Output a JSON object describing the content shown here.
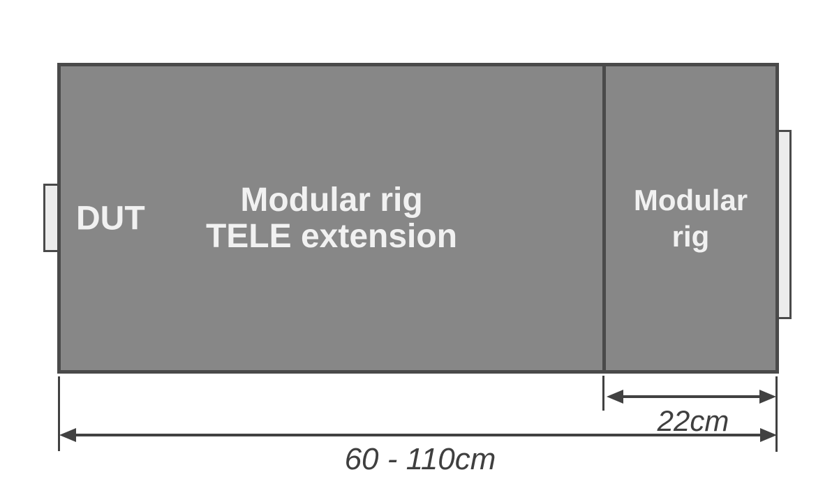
{
  "labels": {
    "dut": "DUT",
    "tele_line1": "Modular rig",
    "tele_line2": "TELE extension",
    "rig_line1": "Modular",
    "rig_line2": "rig"
  },
  "dimensions": {
    "rig_width": "22cm",
    "total_range": "60 - 110cm"
  },
  "colors": {
    "box_fill": "#878787",
    "box_border": "#4A4A4A",
    "tab_fill": "#ECECEC",
    "dimension_lines_text": "#3F3F3F",
    "box_label_text": "#F1F1F1",
    "background": "#FFFFFF"
  }
}
